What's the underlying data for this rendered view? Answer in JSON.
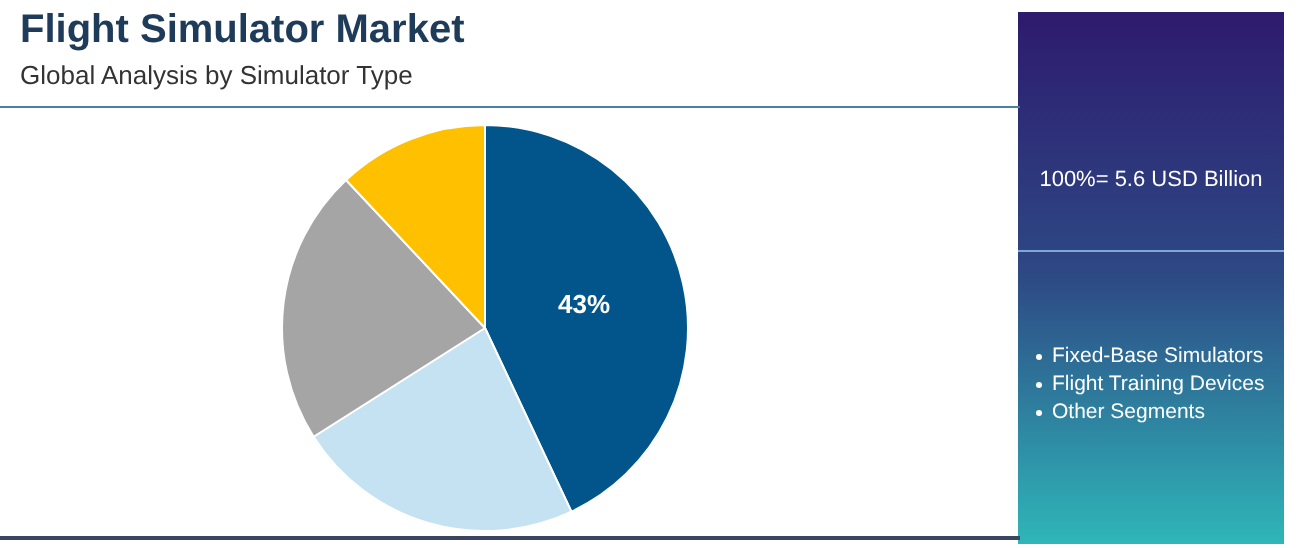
{
  "chart_data": {
    "type": "pie",
    "title": "Flight Simulator Market",
    "subtitle": "Global Analysis by Simulator Type",
    "categories": [
      null,
      null,
      null,
      null
    ],
    "values": [
      43,
      23,
      22,
      12
    ],
    "colors": [
      "#02558b",
      "#c5e2f3",
      "#a5a5a5",
      "#ffc000"
    ],
    "value_labels": [
      "43%",
      null,
      null,
      null
    ],
    "annotations": [
      "100%= 5.6 USD Billion",
      "Fixed-Base Simulators",
      "Flight Training Devices",
      "Other Segments"
    ]
  }
}
